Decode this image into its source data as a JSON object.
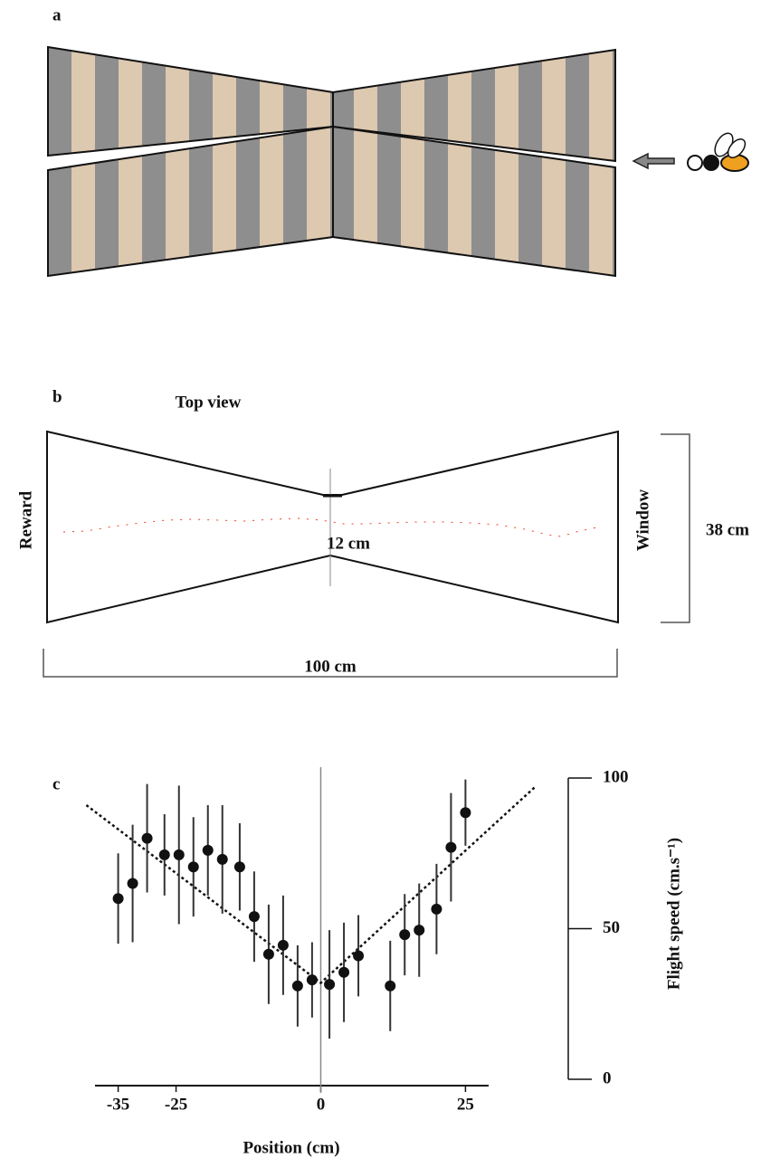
{
  "panel_a": {
    "label": "a"
  },
  "panel_b": {
    "label": "b",
    "title": "Top view",
    "left_label": "Reward",
    "right_label": "Window",
    "gap_label": "12 cm",
    "height_label": "38 cm",
    "length_label": "100 cm"
  },
  "chart_data": {
    "type": "scatter",
    "panel_label": "c",
    "x_label": "Position (cm)",
    "y_label": "Flight speed (cm.s⁻¹)",
    "x": [
      -35,
      -32.5,
      -30,
      -27,
      -24.5,
      -22,
      -19.5,
      -17,
      -14,
      -11.5,
      -9,
      -6.5,
      -4,
      -1.5,
      1.5,
      4,
      6.5,
      12,
      14.5,
      17,
      20,
      22.5,
      25
    ],
    "values": [
      60,
      65,
      80,
      74.5,
      74.5,
      70.5,
      76,
      73,
      70.5,
      54,
      41.5,
      44.5,
      31,
      33,
      31.5,
      35.5,
      41,
      31,
      48,
      49.5,
      56.5,
      77,
      88.5
    ],
    "errors": [
      15,
      19.5,
      18,
      13.5,
      23,
      16.5,
      15,
      18,
      14.5,
      15,
      16.5,
      16.5,
      13.5,
      12.5,
      18,
      16.5,
      13.5,
      15,
      13.5,
      15.5,
      15,
      18,
      11
    ],
    "fit_x": [
      -40.5,
      0,
      37
    ],
    "fit_values": [
      91,
      32,
      97
    ],
    "ref_x": 0,
    "color": "#111111",
    "xlim": [
      -39,
      29
    ],
    "xticks": [
      -35,
      -25,
      0,
      25
    ],
    "ylim": [
      0,
      100
    ],
    "yticks": [
      0,
      50,
      100
    ]
  }
}
